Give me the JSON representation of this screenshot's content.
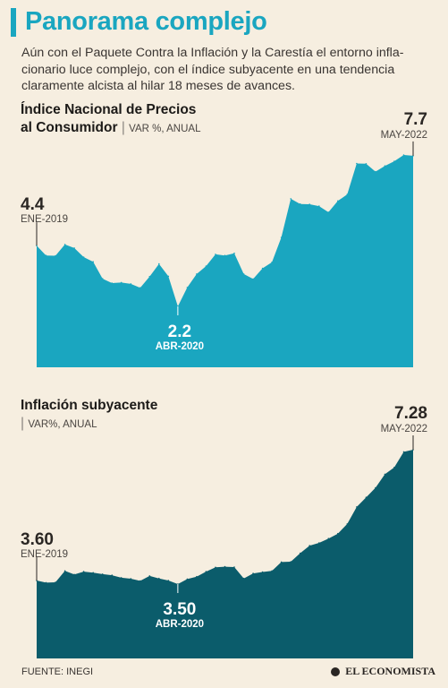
{
  "header": {
    "title": "Panorama complejo",
    "intro": "Aún con el Paquete Contra la Inflación y la Carestía el entorno infla-cionario luce complejo, con el índice subyacente en una tendencia claramente alcista al hilar 18 meses de avances."
  },
  "colors": {
    "accent": "#1aa6c0",
    "chart1_fill": "#1aa6c0",
    "chart2_fill": "#0b5c6b",
    "background": "#f6eee0"
  },
  "chart_data": [
    {
      "type": "area",
      "title_line1": "Índice Nacional de Precios",
      "title_line2": "al Consumidor",
      "unit": "VAR %, ANUAL",
      "x_start": "2019-01",
      "x_end": "2022-05",
      "values": [
        4.37,
        4.01,
        4.0,
        4.41,
        4.28,
        3.95,
        3.78,
        3.16,
        3.0,
        3.02,
        2.97,
        2.83,
        3.24,
        3.7,
        3.25,
        2.15,
        2.84,
        3.33,
        3.62,
        4.05,
        4.01,
        4.09,
        3.33,
        3.15,
        3.54,
        3.76,
        4.67,
        6.08,
        5.89,
        5.88,
        5.81,
        5.59,
        6.0,
        6.24,
        7.37,
        7.36,
        7.07,
        7.28,
        7.45,
        7.68,
        7.65
      ],
      "annotations": {
        "start": {
          "value": "4.4",
          "label": "ENE-2019"
        },
        "low": {
          "value": "2.2",
          "label": "ABR-2020"
        },
        "end": {
          "value": "7.7",
          "label": "MAY-2022"
        }
      }
    },
    {
      "type": "area",
      "title": "Inflación subyacente",
      "unit": "VAR%, ANUAL",
      "x_start": "2019-01",
      "x_end": "2022-05",
      "values": [
        3.6,
        3.54,
        3.55,
        3.87,
        3.77,
        3.85,
        3.82,
        3.78,
        3.75,
        3.68,
        3.65,
        3.59,
        3.73,
        3.66,
        3.6,
        3.5,
        3.64,
        3.71,
        3.85,
        3.97,
        3.99,
        3.98,
        3.66,
        3.8,
        3.84,
        3.87,
        4.12,
        4.13,
        4.37,
        4.58,
        4.66,
        4.78,
        4.92,
        5.19,
        5.67,
        5.94,
        6.21,
        6.59,
        6.78,
        7.22,
        7.28
      ],
      "annotations": {
        "start": {
          "value": "3.60",
          "label": "ENE-2019"
        },
        "low": {
          "value": "3.50",
          "label": "ABR-2020"
        },
        "end": {
          "value": "7.28",
          "label": "MAY-2022"
        }
      }
    }
  ],
  "footer": {
    "source": "FUENTE: INEGI",
    "brand": "EL ECONOMISTA"
  }
}
